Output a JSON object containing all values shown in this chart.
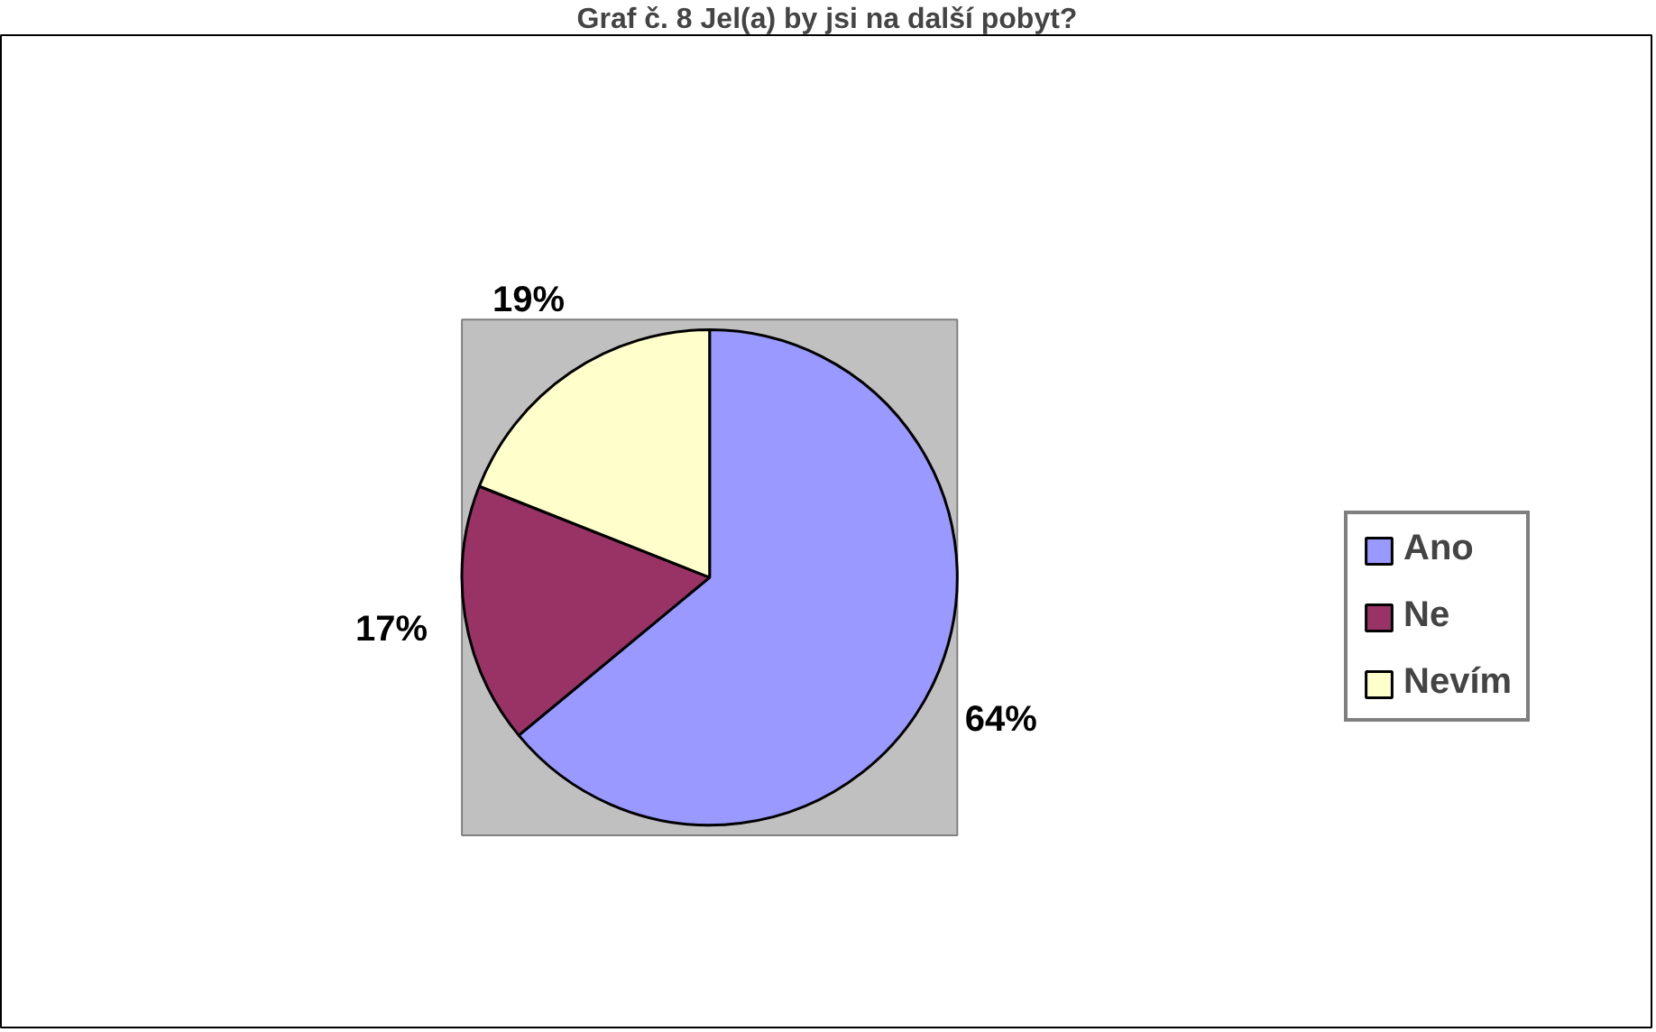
{
  "chart_data": {
    "type": "pie",
    "title": "Graf č. 8 Jel(a) by jsi na další pobyt?",
    "categories": [
      "Ano",
      "Ne",
      "Nevím"
    ],
    "values": [
      64,
      17,
      19
    ],
    "colors": [
      "#9999ff",
      "#993366",
      "#ffffcc"
    ],
    "value_labels": [
      "64%",
      "17%",
      "19%"
    ],
    "legend": "right"
  }
}
